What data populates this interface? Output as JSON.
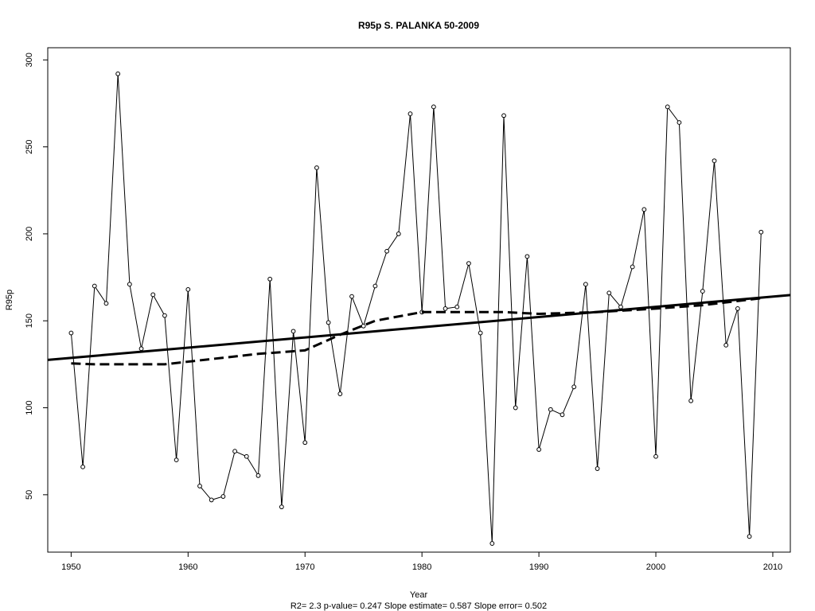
{
  "chart_data": {
    "type": "line",
    "title": "R95p   S. PALANKA 50-2009",
    "xlabel": "Year",
    "ylabel": "R95p",
    "footer": "R2= 2.3  p-value= 0.247  Slope estimate= 0.587  Slope error= 0.502",
    "xlim": [
      1948,
      2011.5
    ],
    "ylim": [
      17,
      307
    ],
    "x_ticks": [
      1950,
      1960,
      1970,
      1980,
      1990,
      2000,
      2010
    ],
    "y_ticks": [
      50,
      100,
      150,
      200,
      250,
      300
    ],
    "grid": false,
    "legend": "none",
    "series": [
      {
        "style": "solid-thin-with-circles",
        "x": [
          1950,
          1951,
          1952,
          1953,
          1954,
          1955,
          1956,
          1957,
          1958,
          1959,
          1960,
          1961,
          1962,
          1963,
          1964,
          1965,
          1966,
          1967,
          1968,
          1969,
          1970,
          1971,
          1972,
          1973,
          1974,
          1975,
          1976,
          1977,
          1978,
          1979,
          1980,
          1981,
          1982,
          1983,
          1984,
          1985,
          1986,
          1987,
          1988,
          1989,
          1990,
          1991,
          1992,
          1993,
          1994,
          1995,
          1996,
          1997,
          1998,
          1999,
          2000,
          2001,
          2002,
          2003,
          2004,
          2005,
          2006,
          2007,
          2008,
          2009
        ],
        "values": [
          143,
          66,
          170,
          160,
          292,
          171,
          134,
          165,
          153,
          70,
          168,
          55,
          47,
          49,
          75,
          72,
          61,
          174,
          43,
          144,
          80,
          238,
          149,
          108,
          164,
          147,
          170,
          190,
          200,
          269,
          155,
          273,
          157,
          158,
          183,
          143,
          22,
          268,
          100,
          187,
          76,
          99,
          96,
          112,
          171,
          65,
          166,
          158,
          181,
          214,
          72,
          273,
          264,
          104,
          167,
          242,
          136,
          157,
          26,
          201
        ]
      },
      {
        "style": "solid-thick",
        "x": [
          1948,
          2011.5
        ],
        "values": [
          127.5,
          164.8
        ]
      },
      {
        "style": "dashed-thick",
        "x": [
          1950,
          1952,
          1955,
          1958,
          1962,
          1966,
          1968,
          1970,
          1973,
          1976,
          1980,
          1984,
          1987,
          1990,
          1995,
          2000,
          2004,
          2009
        ],
        "values": [
          125.5,
          125,
          125,
          125,
          128,
          131,
          132,
          133,
          142,
          150,
          155,
          155,
          155,
          154,
          155,
          157,
          159,
          163
        ]
      }
    ]
  }
}
